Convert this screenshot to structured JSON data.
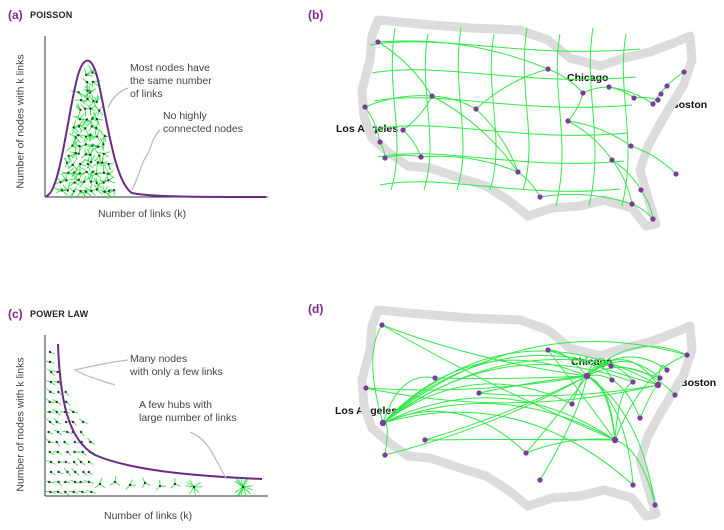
{
  "panel_a": {
    "tag": "(a)",
    "title": "POISSON",
    "ylabel": "Number of nodes with k links",
    "xlabel": "Number of links (k)",
    "annotation_1": [
      "Most nodes have",
      "the same number",
      "of links"
    ],
    "annotation_2": [
      "No highly",
      "connected nodes"
    ]
  },
  "panel_b": {
    "tag": "(b)",
    "cities": {
      "la": "Los Angeles",
      "chicago": "Chicago",
      "boston": "Boston"
    }
  },
  "panel_c": {
    "tag": "(c)",
    "title": "POWER LAW",
    "ylabel": "Number of nodes with k links",
    "xlabel": "Number of links (k)",
    "annotation_1": [
      "Many nodes",
      "with only a few links"
    ],
    "annotation_2": [
      "A few hubs with",
      "large number of links"
    ]
  },
  "panel_d": {
    "tag": "(d)",
    "cities": {
      "la": "Los Angeles",
      "chicago": "Chicago",
      "boston": "Boston"
    }
  },
  "colors": {
    "curve": "#6b2a86",
    "link": "#33e84a",
    "node": "#7e3a9a",
    "map": "#d9d9d9"
  }
}
